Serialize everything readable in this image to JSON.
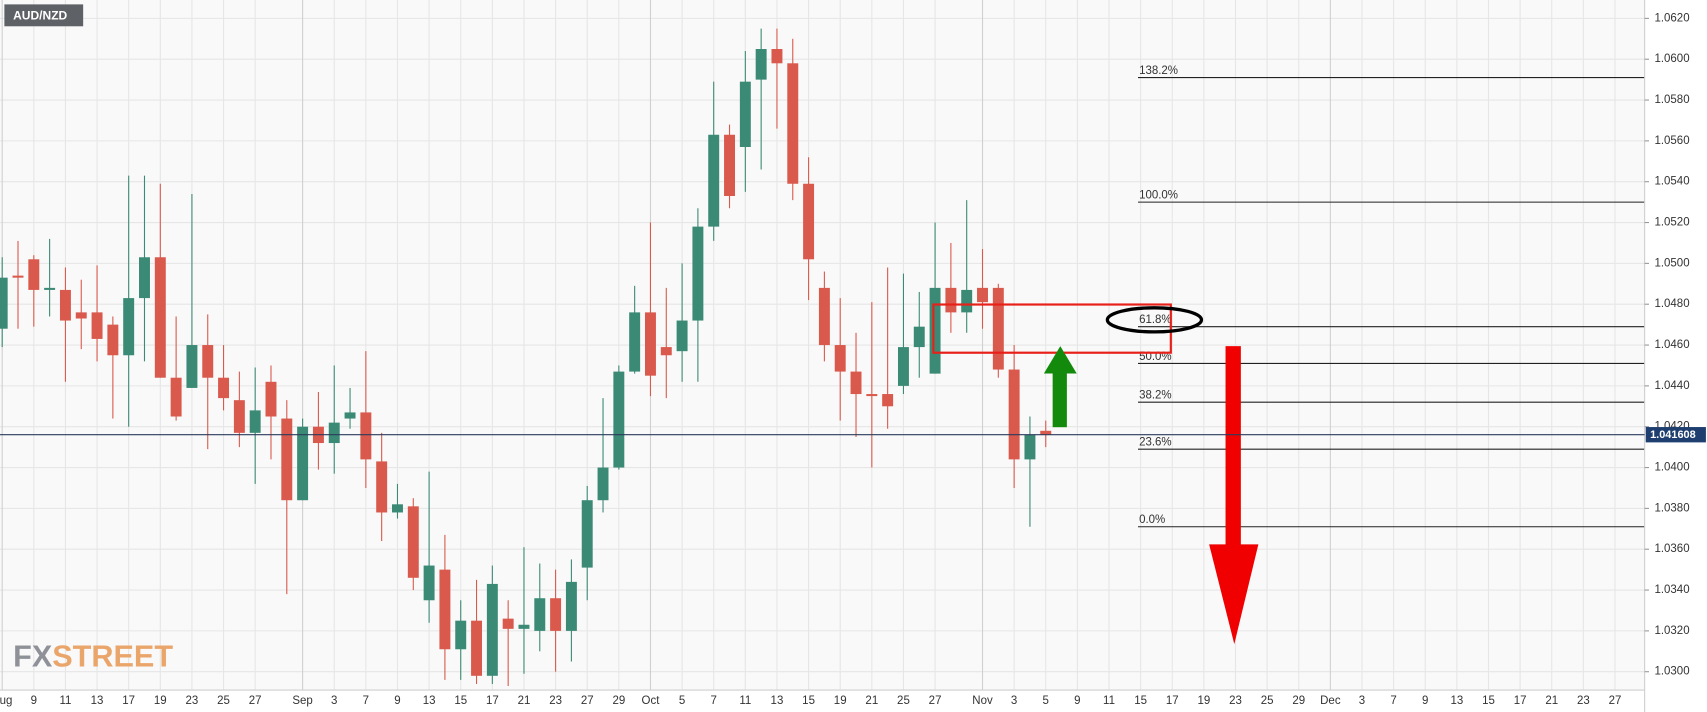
{
  "chart_data": {
    "type": "candlestick",
    "title": "AUD/NZD",
    "watermark": [
      "FX",
      "STREET"
    ],
    "categories": [
      "Aug",
      null,
      "9",
      null,
      "11",
      null,
      "13",
      null,
      "17",
      null,
      "19",
      null,
      "23",
      null,
      "25",
      null,
      "27",
      null,
      null,
      "Sep",
      null,
      "3",
      null,
      "7",
      null,
      "9",
      null,
      "13",
      null,
      "15",
      null,
      "17",
      null,
      "21",
      null,
      "23",
      null,
      "27",
      null,
      "29",
      null,
      "Oct",
      null,
      "5",
      null,
      "7",
      null,
      "11",
      null,
      "13",
      null,
      "15",
      null,
      "19",
      null,
      "21",
      null,
      "25",
      null,
      "27",
      null,
      null,
      "Nov",
      null,
      "3",
      null,
      "5",
      null,
      "9",
      null,
      "11",
      null,
      "15",
      null,
      "17",
      null,
      "19",
      null,
      "23",
      null,
      "25",
      null,
      "29",
      null,
      "Dec",
      null,
      "3",
      null,
      "7",
      null,
      "9",
      null,
      "13",
      null,
      "15",
      null,
      "17",
      null,
      "21",
      null,
      "23",
      null,
      "27",
      null
    ],
    "open": [
      1.0468,
      1.0494,
      1.0502,
      1.0487,
      1.0487,
      1.0476,
      1.0476,
      1.047,
      1.0455,
      1.0483,
      1.0503,
      1.0444,
      1.0439,
      1.046,
      1.0444,
      1.0433,
      1.0417,
      1.0442,
      1.0424,
      1.0384,
      1.042,
      1.0412,
      1.0424,
      1.0427,
      1.0403,
      1.0378,
      1.0381,
      1.0335,
      1.035,
      1.0311,
      1.0325,
      1.0298,
      1.0326,
      1.0321,
      1.032,
      1.0336,
      1.032,
      1.0351,
      1.0384,
      1.04,
      1.0447,
      1.0476,
      1.0459,
      1.0457,
      1.0472,
      1.0518,
      1.0563,
      1.0557,
      1.059,
      1.0605,
      1.0598,
      1.0539,
      1.0488,
      1.046,
      1.0447,
      1.0436,
      1.0436,
      1.044,
      1.0459,
      1.0446,
      1.0488,
      1.0476,
      1.0488,
      1.0488,
      1.0448,
      1.0404,
      1.0418,
      null,
      null,
      null,
      null,
      null,
      null,
      null,
      null,
      null,
      null,
      null,
      null,
      null,
      null,
      null,
      null,
      null,
      null,
      null,
      null,
      null,
      null,
      null,
      null,
      null,
      null,
      null,
      null,
      null,
      null,
      null,
      null,
      null,
      null,
      null,
      null,
      null
    ],
    "high": [
      1.0503,
      1.0511,
      1.0504,
      1.0512,
      1.0498,
      1.0492,
      1.0499,
      1.0474,
      1.0543,
      1.0543,
      1.0539,
      1.0474,
      1.0534,
      1.0475,
      1.046,
      1.0447,
      1.0449,
      1.045,
      1.0433,
      1.0424,
      1.0437,
      1.045,
      1.0439,
      1.0457,
      1.0417,
      1.0392,
      1.0385,
      1.0398,
      1.0367,
      1.0335,
      1.0345,
      1.0352,
      1.0335,
      1.0361,
      1.0353,
      1.035,
      1.0355,
      1.0391,
      1.0434,
      1.045,
      1.0489,
      1.052,
      1.0488,
      1.05,
      1.0527,
      1.0589,
      1.0568,
      1.0604,
      1.0615,
      1.0615,
      1.061,
      1.0552,
      1.0496,
      1.0483,
      1.0466,
      1.0481,
      1.0498,
      1.0495,
      1.0486,
      1.052,
      1.051,
      1.0531,
      1.0507,
      1.049,
      1.046,
      1.0425,
      1.0423,
      null,
      null,
      null,
      null,
      null,
      null,
      null,
      null,
      null,
      null,
      null,
      null,
      null,
      null,
      null,
      null,
      null,
      null,
      null,
      null,
      null,
      null,
      null,
      null,
      null,
      null,
      null,
      null,
      null,
      null,
      null,
      null,
      null,
      null,
      null,
      null,
      null
    ],
    "low": [
      1.0459,
      1.0468,
      1.0469,
      1.0474,
      1.0442,
      1.0458,
      1.0452,
      1.0424,
      1.042,
      1.0452,
      1.0444,
      1.0423,
      1.0439,
      1.0409,
      1.0428,
      1.041,
      1.0392,
      1.0404,
      1.0338,
      1.0384,
      1.0399,
      1.0397,
      1.0419,
      1.039,
      1.0364,
      1.0375,
      1.034,
      1.0324,
      1.0296,
      1.0296,
      1.0294,
      1.0294,
      1.0293,
      1.0299,
      1.031,
      1.03,
      1.0305,
      1.0335,
      1.0378,
      1.0399,
      1.0446,
      1.0435,
      1.0434,
      1.0442,
      1.0442,
      1.0511,
      1.0527,
      1.0535,
      1.0546,
      1.0566,
      1.0531,
      1.0482,
      1.0452,
      1.0423,
      1.0415,
      1.04,
      1.0419,
      1.0436,
      1.0444,
      1.0446,
      1.0466,
      1.0466,
      1.0468,
      1.0444,
      1.039,
      1.0371,
      1.041,
      null,
      null,
      null,
      null,
      null,
      null,
      null,
      null,
      null,
      null,
      null,
      null,
      null,
      null,
      null,
      null,
      null,
      null,
      null,
      null,
      null,
      null,
      null,
      null,
      null,
      null,
      null,
      null,
      null,
      null,
      null,
      null,
      null,
      null,
      null,
      null,
      null
    ],
    "close": [
      1.0493,
      1.0493,
      1.0487,
      1.0488,
      1.0472,
      1.0473,
      1.0463,
      1.0455,
      1.0483,
      1.0503,
      1.0444,
      1.0425,
      1.046,
      1.0444,
      1.0434,
      1.0417,
      1.0428,
      1.0425,
      1.0384,
      1.042,
      1.0412,
      1.0422,
      1.0427,
      1.0404,
      1.0378,
      1.0382,
      1.0346,
      1.0352,
      1.0311,
      1.0325,
      1.0298,
      1.0343,
      1.0321,
      1.0323,
      1.0336,
      1.032,
      1.0344,
      1.0384,
      1.04,
      1.0447,
      1.0476,
      1.0445,
      1.0455,
      1.0472,
      1.0518,
      1.0563,
      1.0533,
      1.0589,
      1.0605,
      1.0598,
      1.0539,
      1.0502,
      1.046,
      1.0447,
      1.0436,
      1.0435,
      1.043,
      1.0459,
      1.0469,
      1.0488,
      1.0476,
      1.0487,
      1.0481,
      1.0448,
      1.0404,
      1.0416,
      1.0416,
      null,
      null,
      null,
      null,
      null,
      null,
      null,
      null,
      null,
      null,
      null,
      null,
      null,
      null,
      null,
      null,
      null,
      null,
      null,
      null,
      null,
      null,
      null,
      null,
      null,
      null,
      null,
      null,
      null,
      null,
      null,
      null,
      null,
      null,
      null,
      null,
      null
    ],
    "up_color": "#3b8a75",
    "down_color": "#d9594c",
    "ylim": [
      1.0291,
      1.0629
    ],
    "yticks": [
      {
        "value": 1.03,
        "label": "1.0300"
      },
      {
        "value": 1.032,
        "label": "1.0320"
      },
      {
        "value": 1.034,
        "label": "1.0340"
      },
      {
        "value": 1.036,
        "label": "1.0360"
      },
      {
        "value": 1.038,
        "label": "1.0380"
      },
      {
        "value": 1.04,
        "label": "1.0400"
      },
      {
        "value": 1.042,
        "label": "1.0420"
      },
      {
        "value": 1.044,
        "label": "1.0440"
      },
      {
        "value": 1.046,
        "label": "1.0460"
      },
      {
        "value": 1.048,
        "label": "1.0480"
      },
      {
        "value": 1.05,
        "label": "1.0500"
      },
      {
        "value": 1.052,
        "label": "1.0520"
      },
      {
        "value": 1.054,
        "label": "1.0540"
      },
      {
        "value": 1.056,
        "label": "1.0560"
      },
      {
        "value": 1.058,
        "label": "1.0580"
      },
      {
        "value": 1.06,
        "label": "1.0600"
      },
      {
        "value": 1.062,
        "label": "1.0620"
      }
    ],
    "grid": true,
    "last_price": 1.041608,
    "fib_levels": [
      {
        "label": "138.2%",
        "price": 1.0591
      },
      {
        "label": "100.0%",
        "price": 1.053
      },
      {
        "label": "61.8%",
        "price": 1.0469
      },
      {
        "label": "50.0%",
        "price": 1.0451
      },
      {
        "label": "38.2%",
        "price": 1.0432
      },
      {
        "label": "23.6%",
        "price": 1.0409
      },
      {
        "label": "0.0%",
        "price": 1.0371
      }
    ]
  }
}
